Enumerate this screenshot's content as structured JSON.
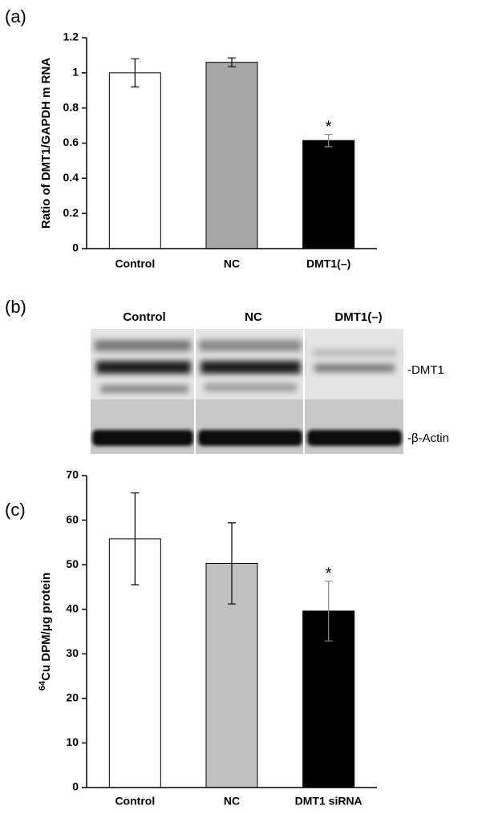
{
  "chart_data": [
    {
      "type": "bar",
      "panel_label": "(a)",
      "ylabel": "Ratio of DMT1/GAPDH m RNA",
      "categories": [
        "Control",
        "NC",
        "DMT1(–)"
      ],
      "values": [
        1.0,
        1.06,
        0.615
      ],
      "errors": [
        0.08,
        0.025,
        0.035
      ],
      "colors": [
        "#ffffff",
        "#a6a6a6",
        "#000000"
      ],
      "ylim": [
        0,
        1.2
      ],
      "yticks": [
        0,
        0.2,
        0.4,
        0.6,
        0.8,
        1,
        1.2
      ],
      "annotations": [
        {
          "category": 2,
          "text": "*"
        }
      ]
    },
    {
      "type": "bar",
      "panel_label": "(c)",
      "ylabel_sup": "64",
      "ylabel": "Cu DPM/μg protein",
      "categories": [
        "Control",
        "NC",
        "DMT1 siRNA"
      ],
      "values": [
        55.8,
        50.3,
        39.6
      ],
      "errors": [
        10.3,
        9.1,
        6.7
      ],
      "colors": [
        "#ffffff",
        "#c0c0c0",
        "#000000"
      ],
      "ylim": [
        0,
        70
      ],
      "yticks": [
        0,
        10,
        20,
        30,
        40,
        50,
        60,
        70
      ],
      "annotations": [
        {
          "category": 2,
          "text": "*"
        }
      ]
    }
  ],
  "blot": {
    "panel_label": "(b)",
    "lanes": [
      "Control",
      "NC",
      "DMT1(–)"
    ],
    "band_labels": [
      "-DMT1",
      "-β-Actin"
    ]
  }
}
